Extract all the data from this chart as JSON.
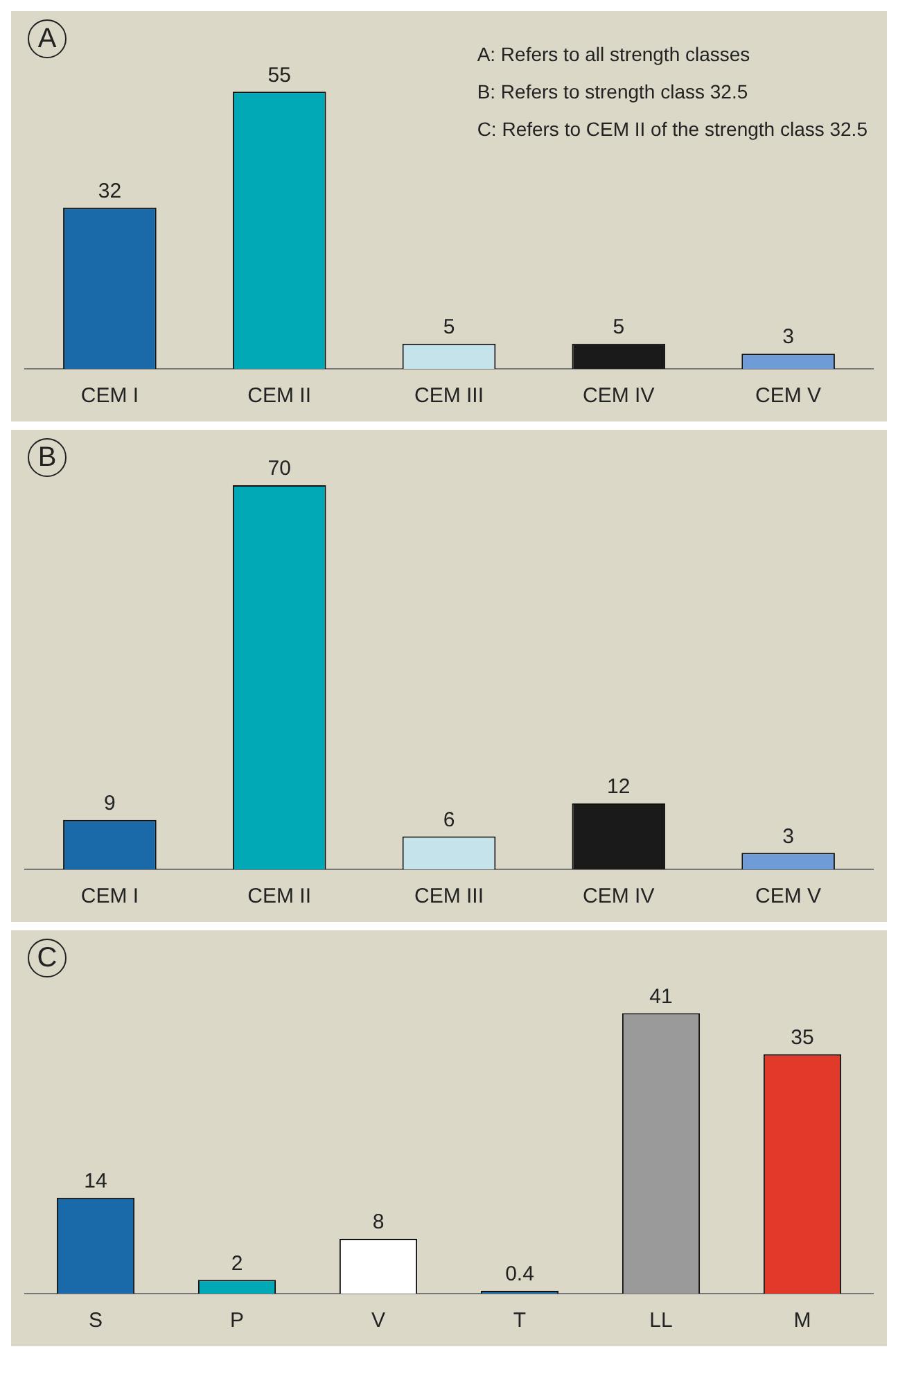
{
  "chart_data": [
    {
      "type": "bar",
      "title": "A",
      "categories": [
        "CEM I",
        "CEM II",
        "CEM III",
        "CEM IV",
        "CEM V"
      ],
      "values": [
        32,
        55,
        5,
        5,
        3
      ],
      "colors": [
        "#1a6aaa",
        "#00a9b5",
        "#c5e3ea",
        "#1a1a1a",
        "#6f9bd6"
      ],
      "data_labels": true,
      "annotations": [
        "A: Refers to all strength classes",
        "B: Refers to strength class 32.5",
        "C: Refers to CEM II of the strength class 32.5"
      ]
    },
    {
      "type": "bar",
      "title": "B",
      "categories": [
        "CEM I",
        "CEM II",
        "CEM III",
        "CEM IV",
        "CEM V"
      ],
      "values": [
        9,
        70,
        6,
        12,
        3
      ],
      "colors": [
        "#1a6aaa",
        "#00a9b5",
        "#c5e3ea",
        "#1a1a1a",
        "#6f9bd6"
      ],
      "data_labels": true
    },
    {
      "type": "bar",
      "title": "C",
      "categories": [
        "S",
        "P",
        "V",
        "T",
        "LL",
        "M"
      ],
      "values": [
        14,
        2,
        8,
        0.4,
        41,
        35
      ],
      "colors": [
        "#1a6aaa",
        "#00a9b5",
        "#ffffff",
        "#1a6aaa",
        "#9a9a9a",
        "#e23a2a"
      ],
      "data_labels": true
    }
  ]
}
